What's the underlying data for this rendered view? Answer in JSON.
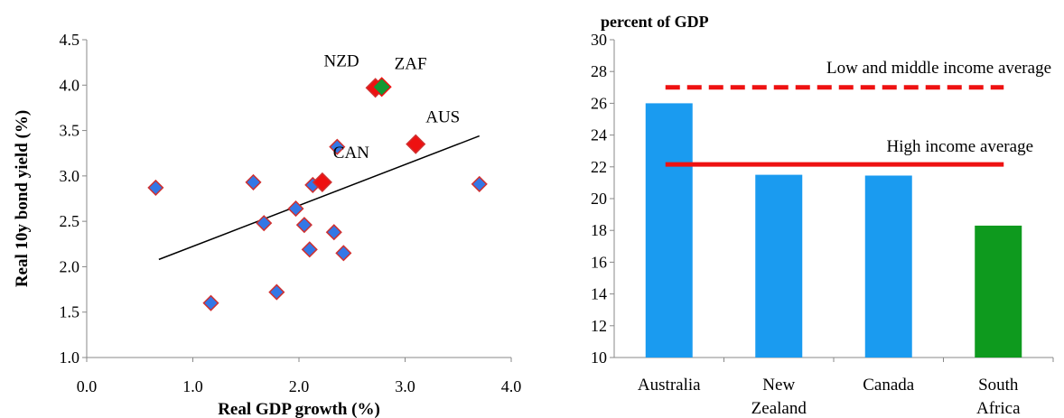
{
  "chart_data": [
    {
      "type": "scatter",
      "title": "",
      "xlabel": "Real GDP growth (%)",
      "ylabel": "Real 10y bond yield (%)",
      "xlim": [
        0.0,
        4.0
      ],
      "ylim": [
        1.0,
        4.5
      ],
      "x_ticks": [
        "0.0",
        "1.0",
        "2.0",
        "3.0",
        "4.0"
      ],
      "y_ticks": [
        "1.0",
        "1.5",
        "2.0",
        "2.5",
        "3.0",
        "3.5",
        "4.0",
        "4.5"
      ],
      "grid": false,
      "trendline": {
        "x": [
          0.68,
          3.7
        ],
        "y": [
          2.08,
          3.44
        ]
      },
      "points": [
        {
          "x": 0.65,
          "y": 2.87,
          "group": "other"
        },
        {
          "x": 1.17,
          "y": 1.6,
          "group": "other"
        },
        {
          "x": 1.57,
          "y": 2.93,
          "group": "other"
        },
        {
          "x": 1.67,
          "y": 2.48,
          "group": "other"
        },
        {
          "x": 1.79,
          "y": 1.72,
          "group": "other"
        },
        {
          "x": 1.97,
          "y": 2.64,
          "group": "other"
        },
        {
          "x": 2.05,
          "y": 2.46,
          "group": "other"
        },
        {
          "x": 2.1,
          "y": 2.19,
          "group": "other"
        },
        {
          "x": 2.13,
          "y": 2.9,
          "group": "other"
        },
        {
          "x": 2.33,
          "y": 2.38,
          "group": "other"
        },
        {
          "x": 2.36,
          "y": 3.32,
          "group": "other"
        },
        {
          "x": 2.42,
          "y": 2.15,
          "group": "other"
        },
        {
          "x": 3.7,
          "y": 2.91,
          "group": "other"
        },
        {
          "x": 2.22,
          "y": 2.93,
          "group": "highlight",
          "label": "CAN"
        },
        {
          "x": 3.1,
          "y": 3.35,
          "group": "highlight",
          "label": "AUS"
        },
        {
          "x": 2.72,
          "y": 3.97,
          "group": "highlight",
          "label": "NZD"
        },
        {
          "x": 2.78,
          "y": 3.98,
          "group": "focus",
          "label": "ZAF"
        }
      ],
      "colors": {
        "other": "#3377e6",
        "highlight": "#ee1111",
        "focus": "#119933",
        "edge": "#d03030",
        "trendline": "#000000"
      }
    },
    {
      "type": "bar",
      "title": "percent of GDP",
      "xlabel": "",
      "ylabel": "",
      "ylim": [
        10,
        30
      ],
      "y_ticks": [
        "10",
        "12",
        "14",
        "16",
        "18",
        "20",
        "22",
        "24",
        "26",
        "28",
        "30"
      ],
      "grid": false,
      "categories": [
        "Australia",
        "New Zealand",
        "Canada",
        "South Africa"
      ],
      "category_lines": [
        [
          "Australia"
        ],
        [
          "New",
          "Zealand"
        ],
        [
          "Canada"
        ],
        [
          "South",
          "Africa"
        ]
      ],
      "values": [
        26.0,
        21.5,
        21.45,
        18.3
      ],
      "bar_colors": [
        "#1a9bf0",
        "#1a9bf0",
        "#1a9bf0",
        "#0e9a1e"
      ],
      "reference_lines": [
        {
          "name": "Low and middle income average",
          "value": 27.0,
          "style": "dashed",
          "color": "#ee1111"
        },
        {
          "name": "High income average",
          "value": 22.15,
          "style": "solid",
          "color": "#ee1111"
        }
      ]
    }
  ]
}
